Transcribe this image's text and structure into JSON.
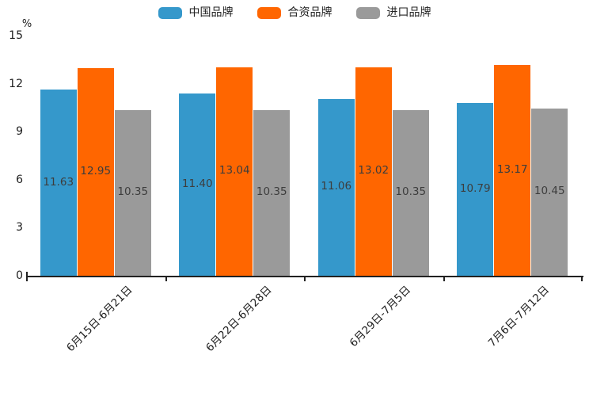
{
  "chart_data": {
    "type": "bar",
    "title": "",
    "ylabel": "%",
    "categories": [
      "6月15日-6月21日",
      "6月22日-6月28日",
      "6月29日-7月5日",
      "7月6日-7月12日"
    ],
    "series": [
      {
        "name": "中国品牌",
        "color": "#3598cb",
        "values": [
          11.63,
          11.4,
          11.06,
          10.79
        ]
      },
      {
        "name": "合资品牌",
        "color": "#ff6600",
        "values": [
          12.95,
          13.04,
          13.02,
          13.17
        ]
      },
      {
        "name": "进口品牌",
        "color": "#9a9a9a",
        "values": [
          10.35,
          10.35,
          10.35,
          10.45
        ]
      }
    ],
    "value_label_format": "2-decimals",
    "ylim": [
      0,
      15
    ],
    "yticks": [
      0,
      3,
      6,
      9,
      12,
      15
    ],
    "grid": false,
    "legend_position": "top",
    "axis_color": "#222222",
    "value_label_color": "#3d3d3d",
    "tick_label_color": "#212121",
    "background_color": "#ffffff"
  }
}
